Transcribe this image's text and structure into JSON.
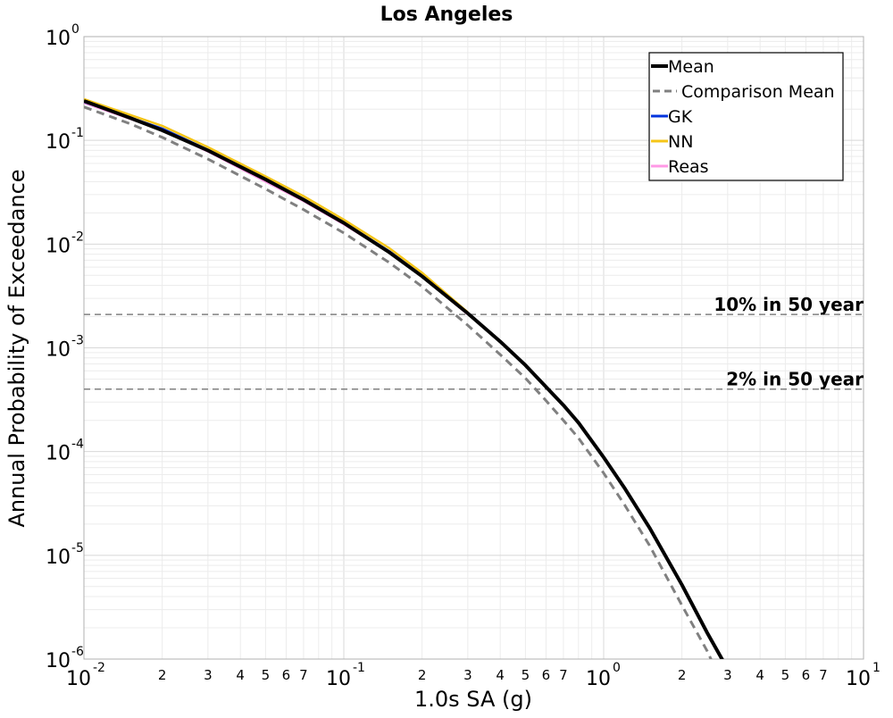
{
  "chart_data": {
    "type": "line",
    "title": "Los Angeles",
    "xlabel": "1.0s SA (g)",
    "ylabel": "Annual Probability of Exceedance",
    "xscale": "log",
    "yscale": "log",
    "xlim": [
      0.01,
      10
    ],
    "ylim": [
      1e-06,
      1
    ],
    "grid": true,
    "legend_position": "top-right",
    "x_major_ticks": [
      {
        "value": 0.01,
        "base": "10",
        "exp": "-2"
      },
      {
        "value": 0.1,
        "base": "10",
        "exp": "-1"
      },
      {
        "value": 1,
        "base": "10",
        "exp": "0"
      },
      {
        "value": 10,
        "base": "10",
        "exp": "1"
      }
    ],
    "x_minor_labels": [
      "2",
      "3",
      "4",
      "5",
      "6",
      "7"
    ],
    "y_major_ticks": [
      {
        "value": 1,
        "base": "10",
        "exp": "0"
      },
      {
        "value": 0.1,
        "base": "10",
        "exp": "-1"
      },
      {
        "value": 0.01,
        "base": "10",
        "exp": "-2"
      },
      {
        "value": 0.001,
        "base": "10",
        "exp": "-3"
      },
      {
        "value": 0.0001,
        "base": "10",
        "exp": "-4"
      },
      {
        "value": 1e-05,
        "base": "10",
        "exp": "-5"
      },
      {
        "value": 1e-06,
        "base": "10",
        "exp": "-6"
      }
    ],
    "reference_lines": [
      {
        "label": "10% in 50 year",
        "y": 0.0021,
        "color": "#808080"
      },
      {
        "label": "2% in 50 year",
        "y": 0.0004,
        "color": "#808080"
      }
    ],
    "series": [
      {
        "name": "Reas",
        "color": "#ff99e6",
        "dash": "solid",
        "width": 2.5,
        "x": [
          0.01,
          0.02,
          0.03,
          0.05,
          0.07,
          0.1,
          0.15,
          0.2,
          0.3
        ],
        "y": [
          0.23,
          0.126,
          0.078,
          0.04,
          0.026,
          0.0155,
          0.0083,
          0.0049,
          0.0021
        ]
      },
      {
        "name": "GK",
        "color": "#0033dd",
        "dash": "solid",
        "width": 2.5,
        "x": [
          0.01,
          0.02,
          0.03,
          0.05,
          0.07,
          0.1,
          0.15,
          0.2,
          0.3
        ],
        "y": [
          0.235,
          0.13,
          0.081,
          0.042,
          0.0272,
          0.0161,
          0.0085,
          0.005,
          0.00215
        ]
      },
      {
        "name": "NN",
        "color": "#f5c518",
        "dash": "solid",
        "width": 2.5,
        "x": [
          0.01,
          0.02,
          0.03,
          0.05,
          0.07,
          0.1,
          0.15,
          0.2,
          0.3
        ],
        "y": [
          0.25,
          0.138,
          0.086,
          0.045,
          0.029,
          0.0172,
          0.0091,
          0.0053,
          0.0022
        ]
      },
      {
        "name": "Comparison Mean",
        "color": "#808080",
        "dash": "dashed",
        "width": 3,
        "x": [
          0.01,
          0.015,
          0.02,
          0.03,
          0.05,
          0.07,
          0.1,
          0.15,
          0.2,
          0.3,
          0.4,
          0.5,
          0.6,
          0.7,
          0.8,
          1.0,
          1.2,
          1.5,
          2.0,
          2.5,
          3.0
        ],
        "y": [
          0.21,
          0.145,
          0.107,
          0.066,
          0.034,
          0.0215,
          0.0128,
          0.0066,
          0.0039,
          0.00165,
          0.00086,
          0.00051,
          0.00031,
          0.0002,
          0.000135,
          6.2e-05,
          3.1e-05,
          1.25e-05,
          3.3e-06,
          1.2e-06,
          4.5e-07
        ]
      },
      {
        "name": "Mean",
        "color": "#000000",
        "dash": "solid",
        "width": 4,
        "x": [
          0.01,
          0.015,
          0.02,
          0.03,
          0.05,
          0.07,
          0.1,
          0.15,
          0.2,
          0.3,
          0.4,
          0.5,
          0.6,
          0.7,
          0.8,
          1.0,
          1.2,
          1.5,
          2.0,
          2.5,
          3.0,
          3.2
        ],
        "y": [
          0.24,
          0.165,
          0.125,
          0.08,
          0.042,
          0.0268,
          0.016,
          0.0083,
          0.0049,
          0.00215,
          0.00115,
          0.00068,
          0.00042,
          0.00028,
          0.00019,
          8.8e-05,
          4.5e-05,
          1.85e-05,
          5.2e-06,
          1.8e-06,
          8e-07,
          6e-07
        ]
      }
    ],
    "legend_order": [
      "Mean",
      "Comparison Mean",
      "GK",
      "NN",
      "Reas"
    ]
  }
}
